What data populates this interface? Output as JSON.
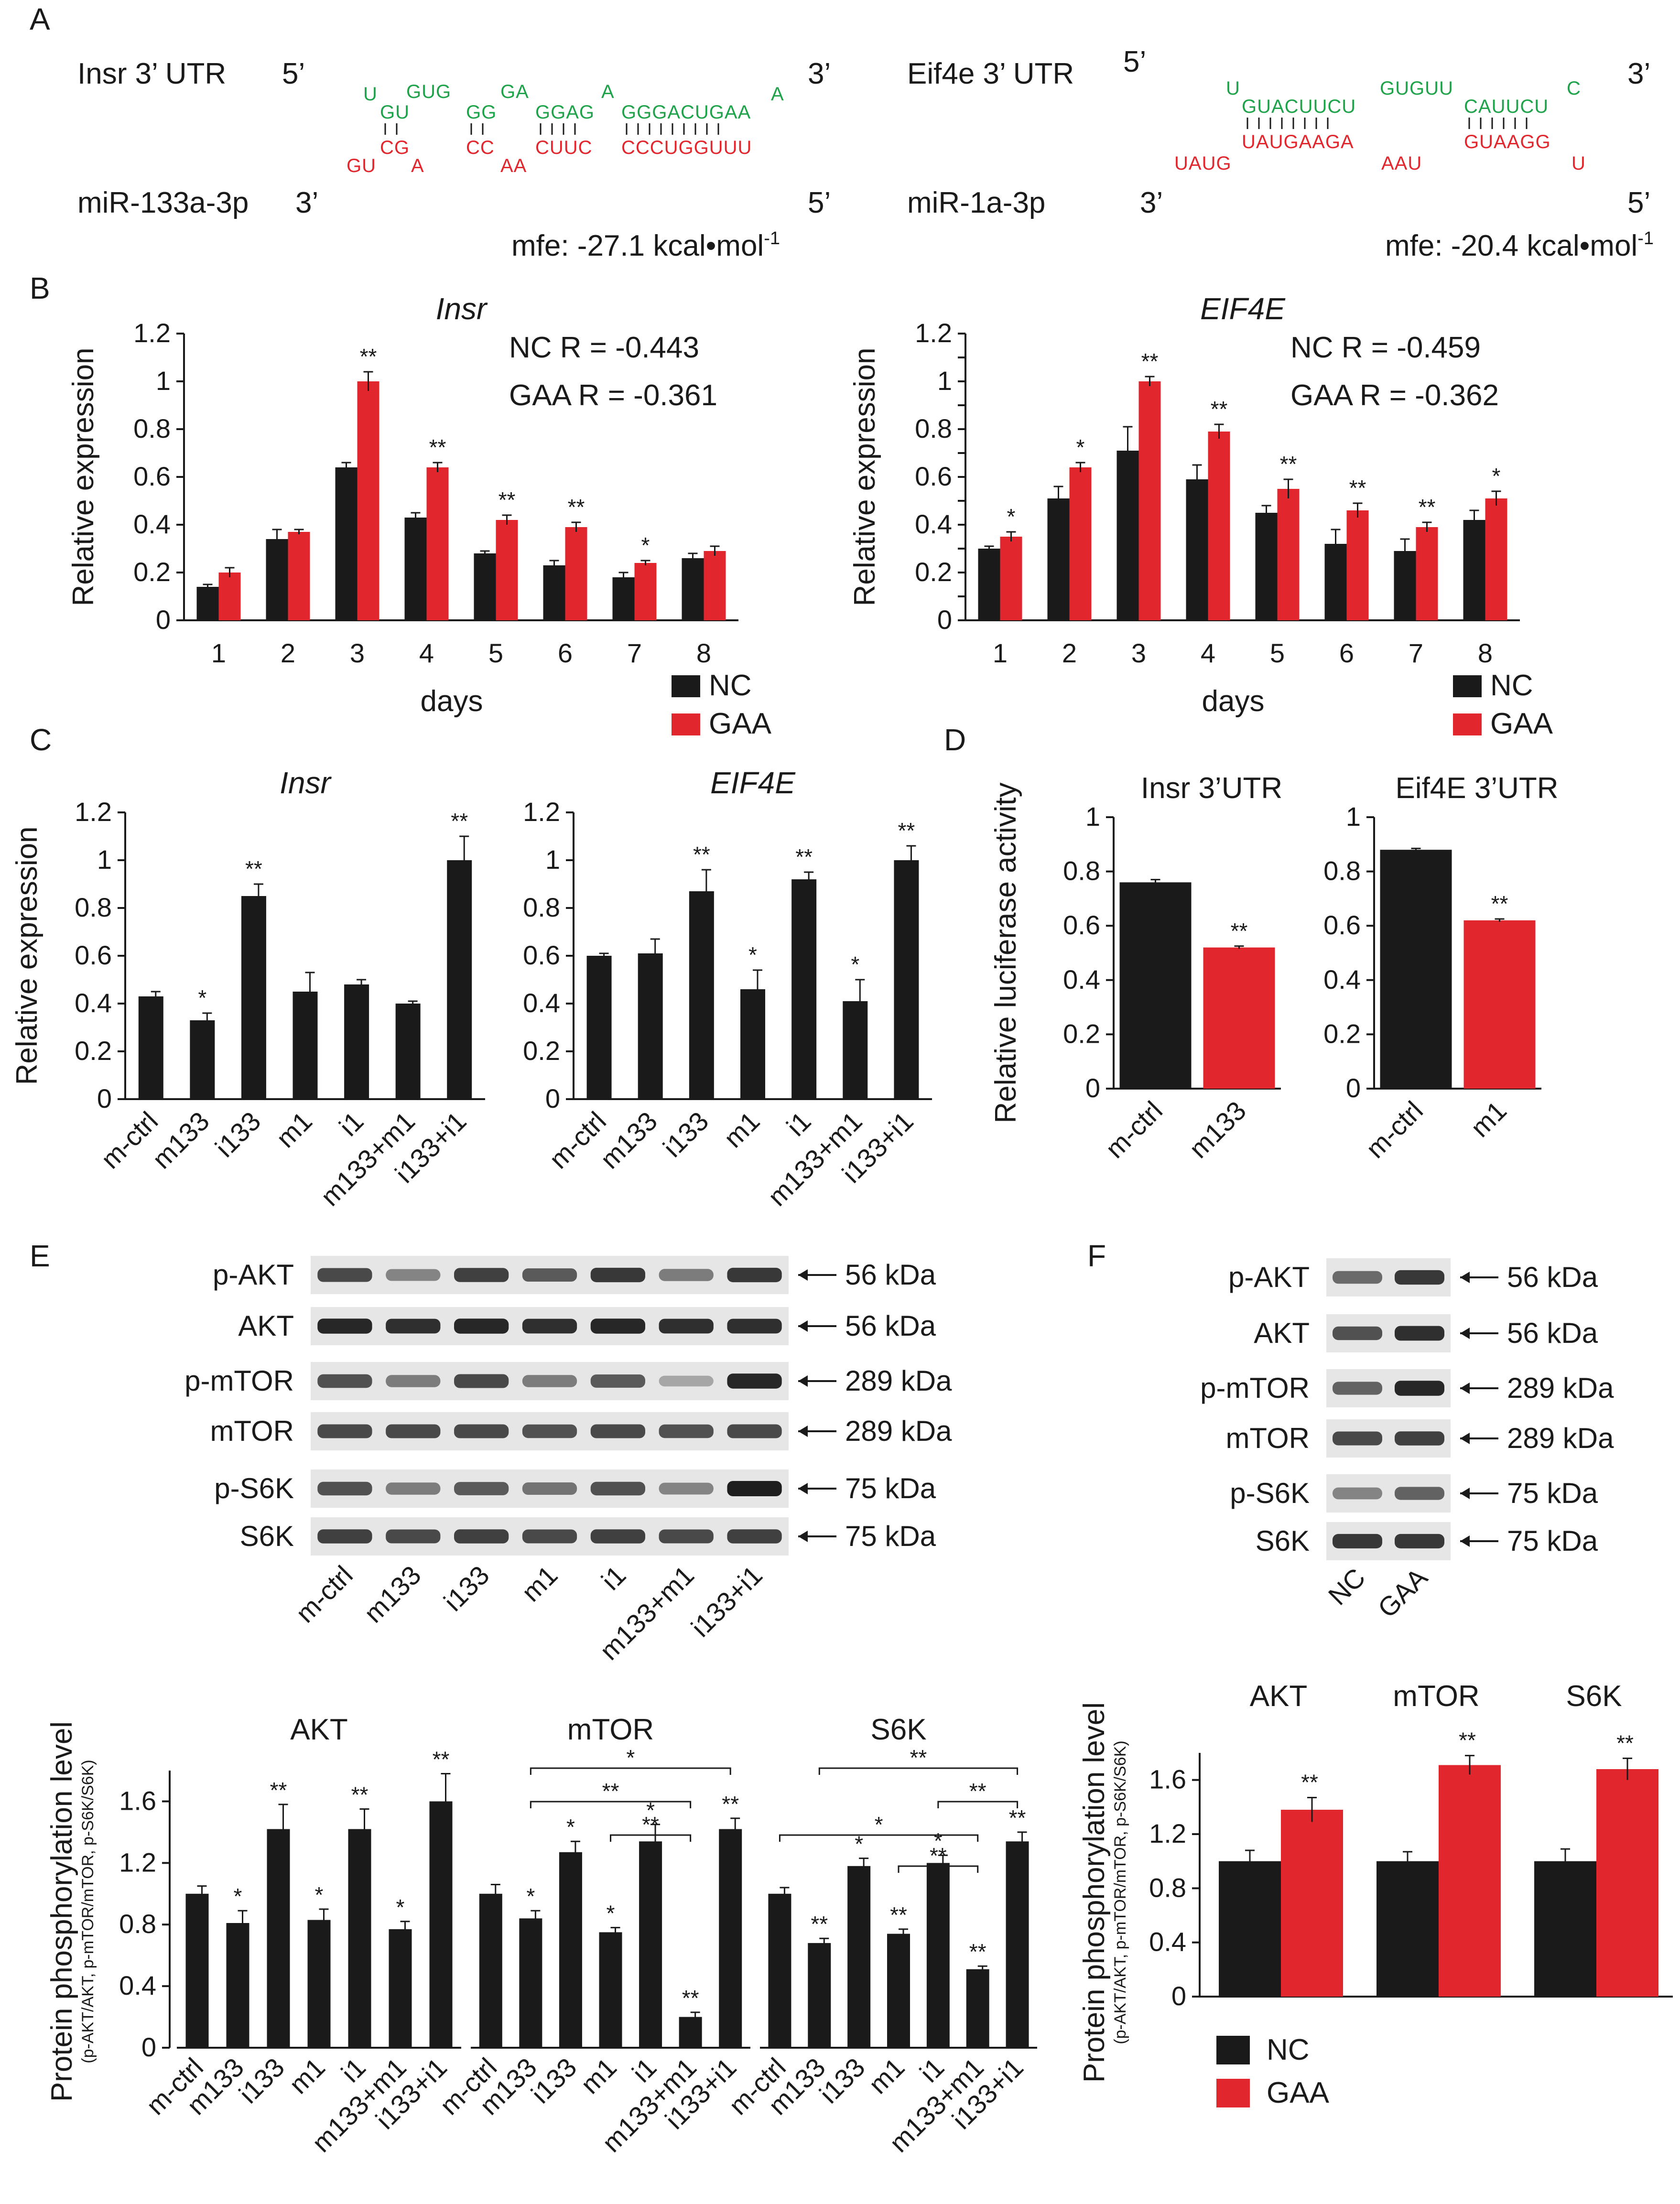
{
  "panel_labels": {
    "a": "A",
    "b": "B",
    "c": "C",
    "d": "D",
    "e": "E",
    "f": "F"
  },
  "colors": {
    "nc": "#1a1a1a",
    "gaa": "#e1272d",
    "green": "#1fa34a",
    "red": "#e1272d",
    "axis": "#1a1a1a"
  },
  "panel_a": {
    "left": {
      "top_label": "Insr 3’ UTR",
      "bottom_label": "miR-133a-3p",
      "five_top": "5’",
      "three_top": "3’",
      "three_bottom": "3’",
      "five_bottom": "5’",
      "top_seq_upper": [
        "U",
        "GUG",
        "GA",
        "A",
        "A"
      ],
      "top_seq_lower": [
        "GU",
        "GG",
        "GGAG",
        "GGGACUGAA"
      ],
      "bottom_seq_upper": [
        "CG",
        "CC",
        "CUUC",
        "CCCUGGUUU"
      ],
      "bottom_seq_lower": [
        "GU",
        "A",
        "AA"
      ],
      "mfe": "mfe: -27.1 kcal•mol",
      "mfe_sup": "-1"
    },
    "right": {
      "top_label": "Eif4e 3’ UTR",
      "bottom_label": "miR-1a-3p",
      "five_top": "5’",
      "three_top": "3’",
      "three_bottom": "3’",
      "five_bottom": "5’",
      "top_seq_upper": [
        "U",
        "GUGUU",
        "C"
      ],
      "top_seq_lower": [
        "GUACUUCU",
        "CAUUCU"
      ],
      "bottom_seq_upper": [
        "UAUGAAGA",
        "GUAAGG"
      ],
      "bottom_seq_lower": [
        "UAUG",
        "AAU",
        "U"
      ],
      "mfe": "mfe: -20.4 kcal•mol",
      "mfe_sup": "-1"
    }
  },
  "chart_data": [
    {
      "id": "B-left",
      "type": "bar",
      "title": "Insr",
      "xlabel": "days",
      "ylabel": "Relative expression",
      "ylim": [
        0,
        1.2
      ],
      "yticks": [
        "0",
        "0.2",
        "0.4",
        "0.6",
        "0.8",
        "1",
        "1.2"
      ],
      "categories": [
        "1",
        "2",
        "3",
        "4",
        "5",
        "6",
        "7",
        "8"
      ],
      "series": [
        {
          "name": "NC",
          "values": [
            0.14,
            0.34,
            0.64,
            0.43,
            0.28,
            0.23,
            0.18,
            0.26
          ],
          "errors": [
            0.01,
            0.04,
            0.02,
            0.02,
            0.01,
            0.02,
            0.02,
            0.02
          ]
        },
        {
          "name": "GAA",
          "values": [
            0.2,
            0.37,
            1.0,
            0.64,
            0.42,
            0.39,
            0.24,
            0.29
          ],
          "errors": [
            0.02,
            0.01,
            0.04,
            0.02,
            0.02,
            0.02,
            0.01,
            0.02
          ]
        }
      ],
      "significance": [
        "",
        "",
        "**",
        "**",
        "**",
        "**",
        "*",
        ""
      ],
      "annotations": [
        "NC R = -0.443",
        "GAA R = -0.361"
      ],
      "legend": [
        "NC",
        "GAA"
      ]
    },
    {
      "id": "B-right",
      "type": "bar",
      "title": "EIF4E",
      "xlabel": "days",
      "ylabel": "Relative expression",
      "ylim": [
        0,
        1.2
      ],
      "yticks": [
        "0",
        "0.1",
        "0.2",
        "0.3",
        "0.4",
        "0.5",
        "0.6",
        "0.7",
        "0.8",
        "0.9",
        "1",
        "1.1",
        "1.2"
      ],
      "yticklabels_shown": [
        "0",
        "0.2",
        "0.4",
        "0.6",
        "0.8",
        "1",
        "1.2"
      ],
      "categories": [
        "1",
        "2",
        "3",
        "4",
        "5",
        "6",
        "7",
        "8"
      ],
      "series": [
        {
          "name": "NC",
          "values": [
            0.3,
            0.51,
            0.71,
            0.59,
            0.45,
            0.32,
            0.29,
            0.42
          ],
          "errors": [
            0.01,
            0.05,
            0.1,
            0.06,
            0.03,
            0.06,
            0.05,
            0.04
          ]
        },
        {
          "name": "GAA",
          "values": [
            0.35,
            0.64,
            1.0,
            0.79,
            0.55,
            0.46,
            0.39,
            0.51
          ],
          "errors": [
            0.02,
            0.02,
            0.02,
            0.03,
            0.04,
            0.03,
            0.02,
            0.03
          ]
        }
      ],
      "significance": [
        "*",
        "*",
        "**",
        "**",
        "**",
        "**",
        "**",
        "*"
      ],
      "annotations": [
        "NC R = -0.459",
        "GAA R = -0.362"
      ],
      "legend": [
        "NC",
        "GAA"
      ]
    },
    {
      "id": "C-left",
      "type": "bar",
      "title": "Insr",
      "ylabel": "Relative expression",
      "ylim": [
        0,
        1.2
      ],
      "yticks": [
        "0",
        "0.2",
        "0.4",
        "0.6",
        "0.8",
        "1",
        "1.2"
      ],
      "categories": [
        "m-ctrl",
        "m133",
        "i133",
        "m1",
        "i1",
        "m133+m1",
        "i133+i1"
      ],
      "series": [
        {
          "name": "expression",
          "values": [
            0.43,
            0.33,
            0.85,
            0.45,
            0.48,
            0.4,
            1.0
          ],
          "errors": [
            0.02,
            0.03,
            0.05,
            0.08,
            0.02,
            0.01,
            0.1
          ]
        }
      ],
      "significance": [
        "",
        "*",
        "**",
        "",
        "",
        "",
        "**"
      ]
    },
    {
      "id": "C-right",
      "type": "bar",
      "title": "EIF4E",
      "ylim": [
        0,
        1.2
      ],
      "yticks": [
        "0",
        "0.2",
        "0.4",
        "0.6",
        "0.8",
        "1",
        "1.2"
      ],
      "categories": [
        "m-ctrl",
        "m133",
        "i133",
        "m1",
        "i1",
        "m133+m1",
        "i133+i1"
      ],
      "series": [
        {
          "name": "expression",
          "values": [
            0.6,
            0.61,
            0.87,
            0.46,
            0.92,
            0.41,
            1.0
          ],
          "errors": [
            0.01,
            0.06,
            0.09,
            0.08,
            0.03,
            0.09,
            0.06
          ]
        }
      ],
      "significance": [
        "",
        "",
        "**",
        "*",
        "**",
        "*",
        "**"
      ]
    },
    {
      "id": "D-left",
      "type": "bar",
      "title": "Insr 3’UTR",
      "ylabel": "Relative luciferase activity",
      "ylim": [
        0,
        1
      ],
      "yticks": [
        "0",
        "0.2",
        "0.4",
        "0.6",
        "0.8",
        "1"
      ],
      "categories": [
        "m-ctrl",
        "m133"
      ],
      "series": [
        {
          "name": "luciferase",
          "values": [
            0.76,
            0.52
          ],
          "errors": [
            0.01,
            0.005
          ],
          "colors": [
            "#1a1a1a",
            "#e1272d"
          ]
        }
      ],
      "significance": [
        "",
        "**"
      ]
    },
    {
      "id": "D-right",
      "type": "bar",
      "title": "Eif4E 3’UTR",
      "ylim": [
        0,
        1
      ],
      "yticks": [
        "0",
        "0.2",
        "0.4",
        "0.6",
        "0.8",
        "1"
      ],
      "categories": [
        "m-ctrl",
        "m1"
      ],
      "series": [
        {
          "name": "luciferase",
          "values": [
            0.88,
            0.62
          ],
          "errors": [
            0.005,
            0.005
          ],
          "colors": [
            "#1a1a1a",
            "#e1272d"
          ]
        }
      ],
      "significance": [
        "",
        "**"
      ]
    },
    {
      "id": "E-chart",
      "type": "bar",
      "ylabel": "Protein phosphorylation level",
      "ylabel_sub": "(p-AKT/AKT, p-mTOR/mTOR, p-S6K/S6K)",
      "ylim": [
        0,
        1.8
      ],
      "yticks": [
        "0",
        "0.4",
        "0.8",
        "1.2",
        "1.6"
      ],
      "categories": [
        "m-ctrl",
        "m133",
        "i133",
        "m1",
        "i1",
        "m133+m1",
        "i133+i1"
      ],
      "groups": [
        {
          "name": "AKT",
          "values": [
            1.0,
            0.81,
            1.42,
            0.83,
            1.42,
            0.77,
            1.6
          ],
          "errors": [
            0.05,
            0.08,
            0.16,
            0.07,
            0.13,
            0.05,
            0.18
          ],
          "significance": [
            "",
            "*",
            "**",
            "*",
            "**",
            "*",
            "**"
          ]
        },
        {
          "name": "mTOR",
          "values": [
            1.0,
            0.84,
            1.27,
            0.75,
            1.34,
            0.2,
            1.42
          ],
          "errors": [
            0.06,
            0.05,
            0.07,
            0.03,
            0.11,
            0.03,
            0.07
          ],
          "significance": [
            "",
            "*",
            "*",
            "*",
            "*",
            "**",
            "**"
          ],
          "brackets": [
            {
              "from": "m133",
              "to": "i133+i1",
              "label": "*"
            },
            {
              "from": "m133",
              "to": "m133+m1",
              "label": "**"
            },
            {
              "from": "m1",
              "to": "m133+m1",
              "label": "**"
            }
          ]
        },
        {
          "name": "S6K",
          "values": [
            1.0,
            0.68,
            1.18,
            0.74,
            1.2,
            0.51,
            1.34
          ],
          "errors": [
            0.04,
            0.03,
            0.05,
            0.03,
            0.05,
            0.02,
            0.06
          ],
          "significance": [
            "",
            "**",
            "*",
            "**",
            "*",
            "**",
            "**"
          ],
          "brackets": [
            {
              "from": "m133",
              "to": "i133+i1",
              "label": "**"
            },
            {
              "from": "i1",
              "to": "i133+i1",
              "label": "**"
            },
            {
              "from": "m-ctrl",
              "to": "m133+m1",
              "label": "*"
            },
            {
              "from": "m1",
              "to": "m133+m1",
              "label": "**"
            }
          ]
        }
      ]
    },
    {
      "id": "F-chart",
      "type": "bar",
      "ylabel": "Protein phosphorylation level",
      "ylabel_sub": "(p-AKT/AKT, p-mTOR/mTOR, p-S6K/S6K)",
      "ylim": [
        0,
        1.8
      ],
      "yticks": [
        "0",
        "0.4",
        "0.8",
        "1.2",
        "1.6"
      ],
      "categories": [
        "AKT",
        "mTOR",
        "S6K"
      ],
      "series": [
        {
          "name": "NC",
          "values": [
            1.0,
            1.0,
            1.0
          ],
          "errors": [
            0.08,
            0.07,
            0.09
          ]
        },
        {
          "name": "GAA",
          "values": [
            1.38,
            1.71,
            1.68
          ],
          "errors": [
            0.09,
            0.07,
            0.08
          ]
        }
      ],
      "significance": [
        "**",
        "**",
        "**"
      ],
      "legend": [
        "NC",
        "GAA"
      ]
    }
  ],
  "blots_e": {
    "rows": [
      "p-AKT",
      "AKT",
      "p-mTOR",
      "mTOR",
      "p-S6K",
      "S6K"
    ],
    "kda": [
      "56 kDa",
      "56 kDa",
      "289 kDa",
      "289 kDa",
      "75 kDa",
      "75 kDa"
    ],
    "lanes": [
      "m-ctrl",
      "m133",
      "i133",
      "m1",
      "i1",
      "m133+m1",
      "i133+i1"
    ],
    "intensity": [
      [
        0.75,
        0.4,
        0.8,
        0.65,
        0.85,
        0.45,
        0.85
      ],
      [
        0.95,
        0.9,
        0.95,
        0.9,
        0.95,
        0.9,
        0.9
      ],
      [
        0.7,
        0.45,
        0.75,
        0.45,
        0.65,
        0.2,
        0.95
      ],
      [
        0.75,
        0.75,
        0.75,
        0.7,
        0.75,
        0.7,
        0.75
      ],
      [
        0.7,
        0.45,
        0.65,
        0.5,
        0.7,
        0.4,
        1.0
      ],
      [
        0.8,
        0.75,
        0.8,
        0.75,
        0.8,
        0.75,
        0.8
      ]
    ]
  },
  "blots_f": {
    "rows": [
      "p-AKT",
      "AKT",
      "p-mTOR",
      "mTOR",
      "p-S6K",
      "S6K"
    ],
    "kda": [
      "56 kDa",
      "56 kDa",
      "289 kDa",
      "289 kDa",
      "75 kDa",
      "75 kDa"
    ],
    "lanes": [
      "NC",
      "GAA"
    ],
    "intensity": [
      [
        0.55,
        0.85
      ],
      [
        0.7,
        0.9
      ],
      [
        0.6,
        0.95
      ],
      [
        0.75,
        0.8
      ],
      [
        0.4,
        0.6
      ],
      [
        0.85,
        0.85
      ]
    ]
  }
}
